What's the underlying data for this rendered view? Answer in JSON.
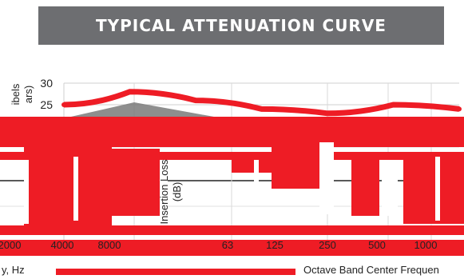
{
  "banner": {
    "title": "TYPICAL ATTENUATION CURVE"
  },
  "chart_data": [
    {
      "type": "line",
      "title": "",
      "ylabel": "ibels\nars)",
      "xlabel": "y, Hz",
      "y_tick_labels": [
        "30",
        "25"
      ],
      "x_tick_labels": [
        "2000",
        "4000",
        "8000"
      ],
      "ylim": [
        0,
        30
      ],
      "grid": true,
      "series": [
        {
          "values": [
            25,
            28,
            26,
            24,
            23,
            25,
            24
          ]
        }
      ],
      "colors": {
        "line": "#ee1c25",
        "shade": "#7a7a7a"
      }
    },
    {
      "type": "line",
      "title": "",
      "ylabel": "Insertion Loss\n(dB)",
      "xlabel": "Octave Band Center Frequen",
      "x_tick_labels": [
        "63",
        "125",
        "250",
        "500",
        "1000"
      ],
      "grid": true,
      "colors": {
        "line": "#ee1c25"
      }
    }
  ]
}
